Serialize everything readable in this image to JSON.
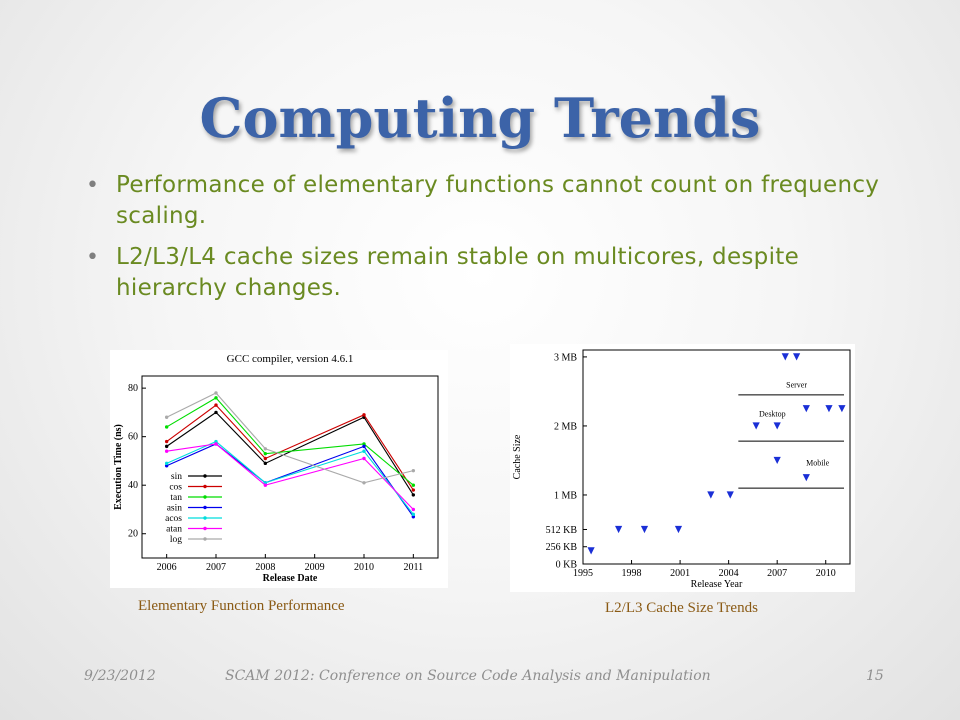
{
  "slide": {
    "title": "Computing Trends",
    "bullets": [
      "Performance of elementary functions cannot count on frequency scaling.",
      "L2/L3/L4 cache sizes remain stable on multicores, despite hierarchy changes."
    ],
    "captions": {
      "left": "Elementary Function Performance",
      "right": "L2/L3 Cache Size Trends"
    },
    "footer": {
      "date": "9/23/2012",
      "conference": "SCAM 2012: Conference on Source Code Analysis and Manipulation",
      "page": "15"
    }
  },
  "chart_data": [
    {
      "type": "line",
      "title": "GCC compiler, version 4.6.1",
      "xlabel": "Release Date",
      "ylabel": "Execution Time (ns)",
      "x": [
        2006,
        2007,
        2008,
        2010,
        2011
      ],
      "xticks": [
        2006,
        2007,
        2008,
        2009,
        2010,
        2011
      ],
      "xlim": [
        2005.5,
        2011.5
      ],
      "ylim": [
        10,
        85
      ],
      "yticks": [
        20,
        40,
        60,
        80
      ],
      "legend": "bottom-left",
      "series": [
        {
          "name": "sin",
          "color": "#000000",
          "values": [
            56,
            70,
            49,
            68,
            36
          ]
        },
        {
          "name": "cos",
          "color": "#cc0000",
          "values": [
            58,
            73,
            51,
            69,
            38
          ]
        },
        {
          "name": "tan",
          "color": "#00dd00",
          "values": [
            64,
            76,
            53,
            57,
            40
          ]
        },
        {
          "name": "asin",
          "color": "#0000ee",
          "values": [
            48,
            57,
            41,
            56,
            27
          ]
        },
        {
          "name": "acos",
          "color": "#00dddd",
          "values": [
            49,
            58,
            41,
            54,
            28
          ]
        },
        {
          "name": "atan",
          "color": "#ff00ff",
          "values": [
            54,
            57,
            40,
            51,
            30
          ]
        },
        {
          "name": "log",
          "color": "#aaaaaa",
          "values": [
            68,
            78,
            55,
            41,
            46
          ]
        }
      ]
    },
    {
      "type": "scatter",
      "title": "",
      "xlabel": "Release Year",
      "ylabel": "Cache Size",
      "xticks": [
        1995,
        1998,
        2001,
        2004,
        2007,
        2010
      ],
      "xlim": [
        1995,
        2011.5
      ],
      "ylim": [
        0,
        3.1
      ],
      "yticks": [
        {
          "v": 0,
          "label": "0 KB"
        },
        {
          "v": 0.25,
          "label": "256 KB"
        },
        {
          "v": 0.5,
          "label": "512 KB"
        },
        {
          "v": 1,
          "label": "1 MB"
        },
        {
          "v": 2,
          "label": "2 MB"
        },
        {
          "v": 3,
          "label": "3 MB"
        }
      ],
      "annotations": [
        {
          "text": "Server",
          "x": 2008.2,
          "y": 2.6
        },
        {
          "text": "Desktop",
          "x": 2006.7,
          "y": 2.18
        },
        {
          "text": "Mobile",
          "x": 2009.5,
          "y": 1.47
        }
      ],
      "divider_lines_y": [
        2.45,
        1.78,
        1.1
      ],
      "marker_color": "#1a2fd6",
      "points": [
        {
          "x": 1995.5,
          "y": 0.19
        },
        {
          "x": 1997.2,
          "y": 0.5
        },
        {
          "x": 1998.8,
          "y": 0.5
        },
        {
          "x": 2000.9,
          "y": 0.5
        },
        {
          "x": 2002.9,
          "y": 1.0
        },
        {
          "x": 2004.1,
          "y": 1.0
        },
        {
          "x": 2005.7,
          "y": 2.0
        },
        {
          "x": 2007.0,
          "y": 2.0
        },
        {
          "x": 2007.0,
          "y": 1.5
        },
        {
          "x": 2007.5,
          "y": 3.0
        },
        {
          "x": 2008.2,
          "y": 3.0
        },
        {
          "x": 2008.8,
          "y": 2.25
        },
        {
          "x": 2008.8,
          "y": 1.25
        },
        {
          "x": 2010.2,
          "y": 2.25
        },
        {
          "x": 2011.0,
          "y": 2.25
        }
      ]
    }
  ]
}
